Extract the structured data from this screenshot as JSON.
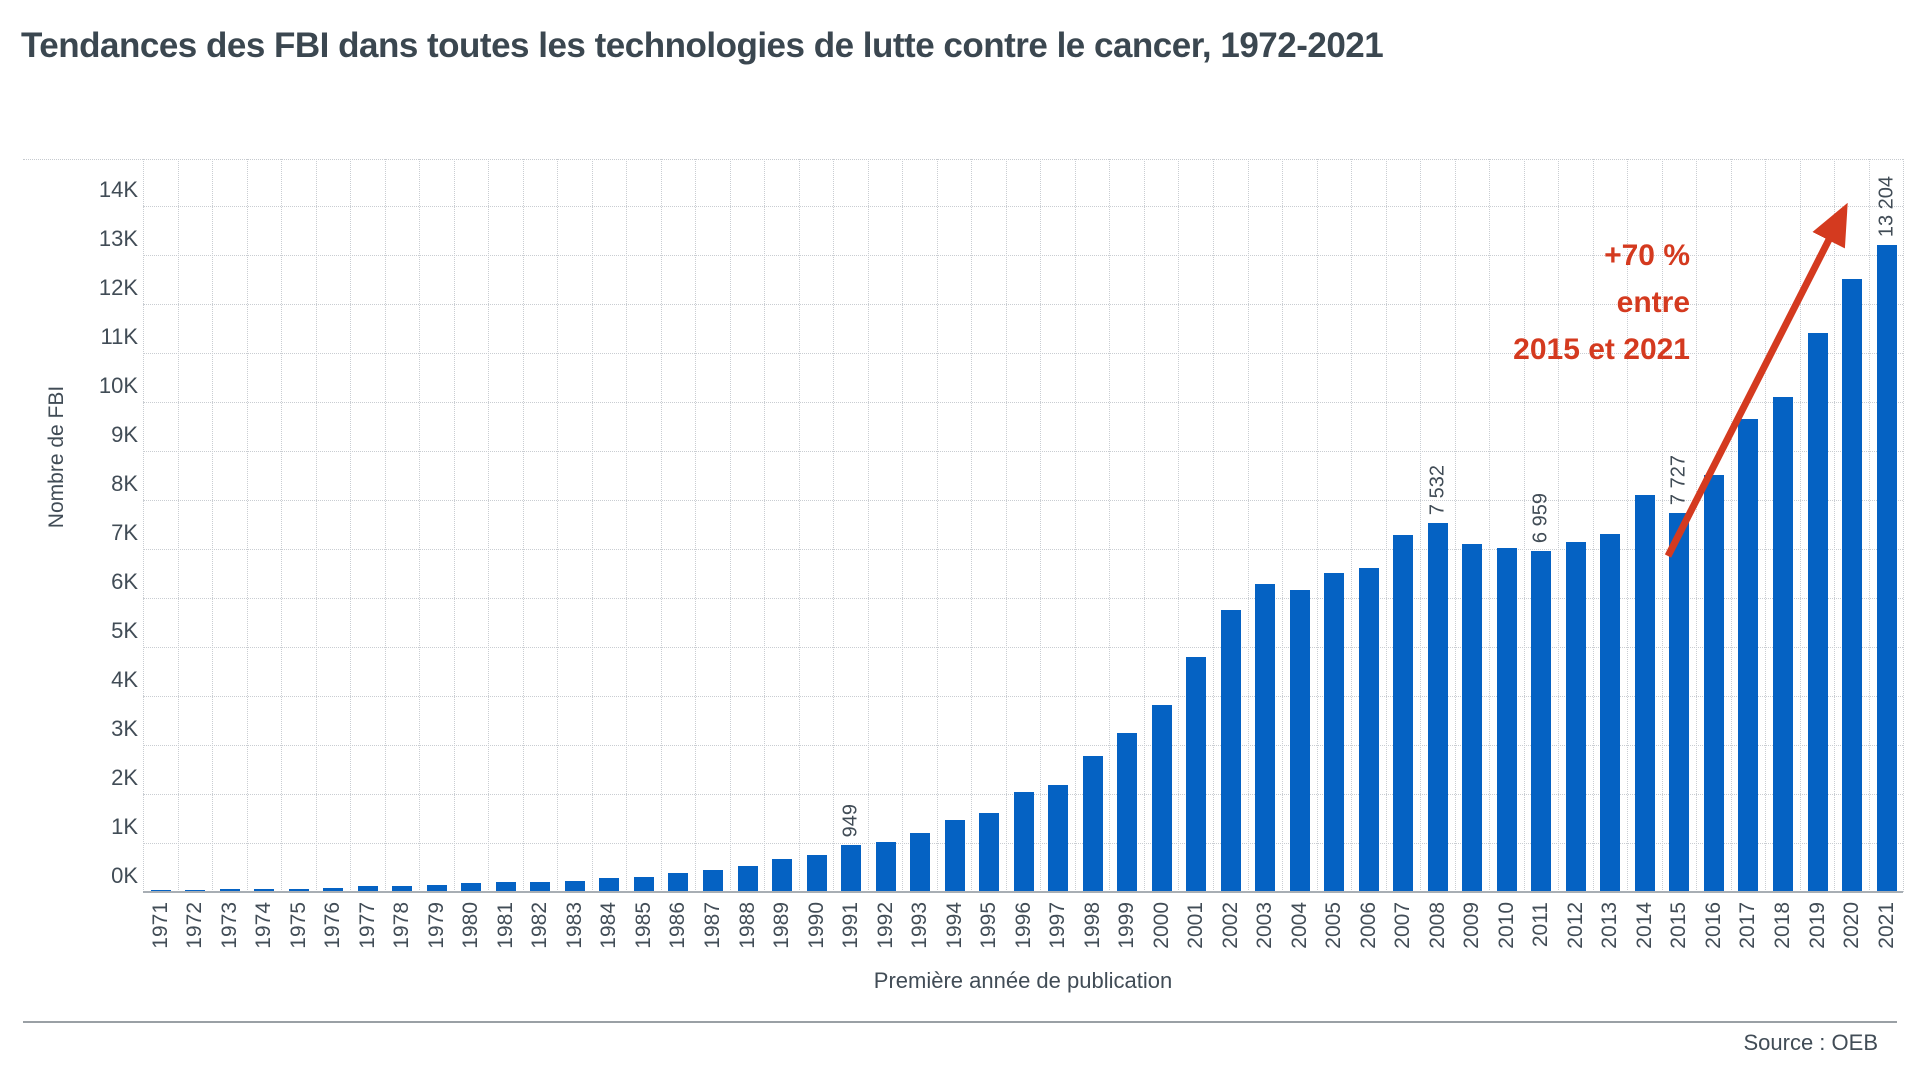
{
  "title": "Tendances des FBI dans toutes les technologies de lutte contre le cancer, 1972-2021",
  "source": "Source : OEB",
  "y_axis": {
    "label": "Nombre de FBI",
    "ticks": [
      "0K",
      "1K",
      "2K",
      "3K",
      "4K",
      "5K",
      "6K",
      "7K",
      "8K",
      "9K",
      "10K",
      "11K",
      "12K",
      "13K",
      "14K"
    ]
  },
  "x_axis": {
    "label": "Première année de publication"
  },
  "annotation": {
    "line1": "+70 %",
    "line2": "entre",
    "line3": "2015 et 2021",
    "color": "#d43a1f"
  },
  "chart_data": {
    "type": "bar",
    "title": "Tendances des FBI dans toutes les technologies de lutte contre le cancer, 1972-2021",
    "xlabel": "Première année de publication",
    "ylabel": "Nombre de FBI",
    "ylim": [
      0,
      15000
    ],
    "ytick_step": 1000,
    "grid": "dotted",
    "legend": "none",
    "bar_color": "#0562c3",
    "annotation_color": "#d43a1f",
    "categories": [
      1971,
      1972,
      1973,
      1974,
      1975,
      1976,
      1977,
      1978,
      1979,
      1980,
      1981,
      1982,
      1983,
      1984,
      1985,
      1986,
      1987,
      1988,
      1989,
      1990,
      1991,
      1992,
      1993,
      1994,
      1995,
      1996,
      1997,
      1998,
      1999,
      2000,
      2001,
      2002,
      2003,
      2004,
      2005,
      2006,
      2007,
      2008,
      2009,
      2010,
      2011,
      2012,
      2013,
      2014,
      2015,
      2016,
      2017,
      2018,
      2019,
      2020,
      2021
    ],
    "values": [
      40,
      35,
      55,
      65,
      65,
      90,
      130,
      115,
      150,
      185,
      195,
      210,
      220,
      280,
      315,
      390,
      455,
      535,
      670,
      760,
      949,
      1030,
      1210,
      1470,
      1615,
      2040,
      2180,
      2780,
      3250,
      3820,
      4790,
      5760,
      6280,
      6170,
      6500,
      6620,
      7290,
      7532,
      7110,
      7030,
      6959,
      7150,
      7300,
      8100,
      7727,
      8500,
      9650,
      10100,
      11400,
      12500,
      13204
    ],
    "bar_labels": {
      "1991": "949",
      "2008": "7 532",
      "2011": "6 959",
      "2015": "7 727",
      "2021": "13 204"
    }
  }
}
